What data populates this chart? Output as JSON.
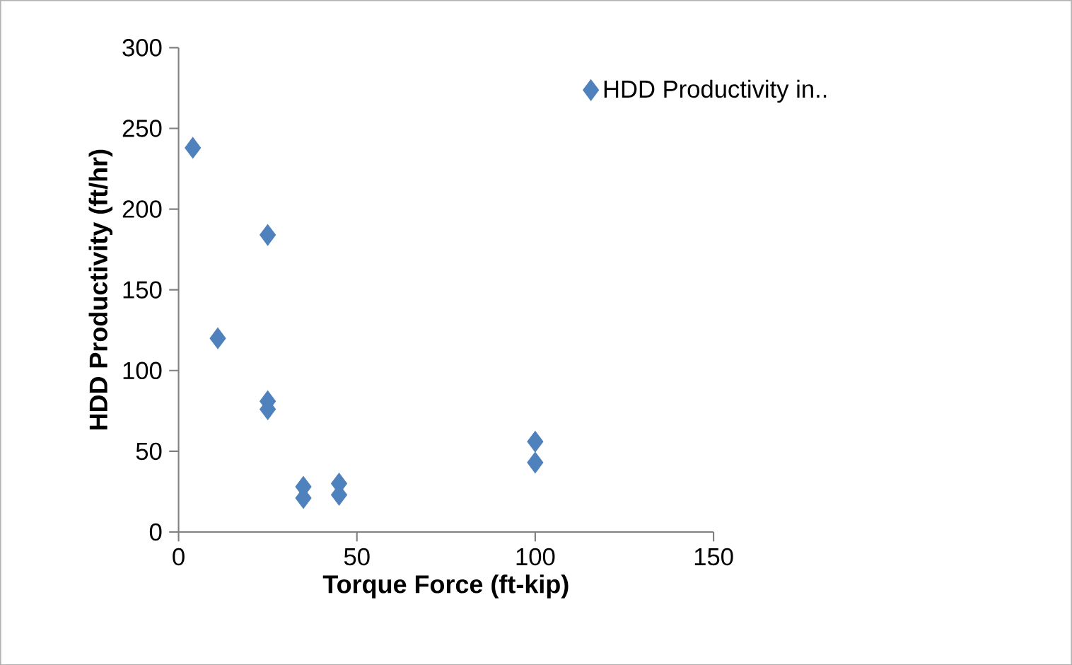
{
  "chart_data": {
    "type": "scatter",
    "xlabel": "Torque Force (ft-kip)",
    "ylabel": "HDD Productivity (ft/hr)",
    "series": [
      {
        "name": "HDD Productivity in..",
        "color": "#4f81bd",
        "x": [
          4,
          11,
          25,
          25,
          25,
          35,
          35,
          45,
          45,
          100,
          100
        ],
        "values": [
          238,
          120,
          184,
          81,
          76,
          28,
          21,
          30,
          23,
          56,
          43
        ]
      }
    ],
    "xlim": [
      0,
      150
    ],
    "ylim": [
      0,
      300
    ],
    "xticks": [
      0,
      50,
      100,
      150
    ],
    "yticks": [
      0,
      50,
      100,
      150,
      200,
      250,
      300
    ],
    "marker": "diamond",
    "legend": "top right",
    "grid": false
  }
}
